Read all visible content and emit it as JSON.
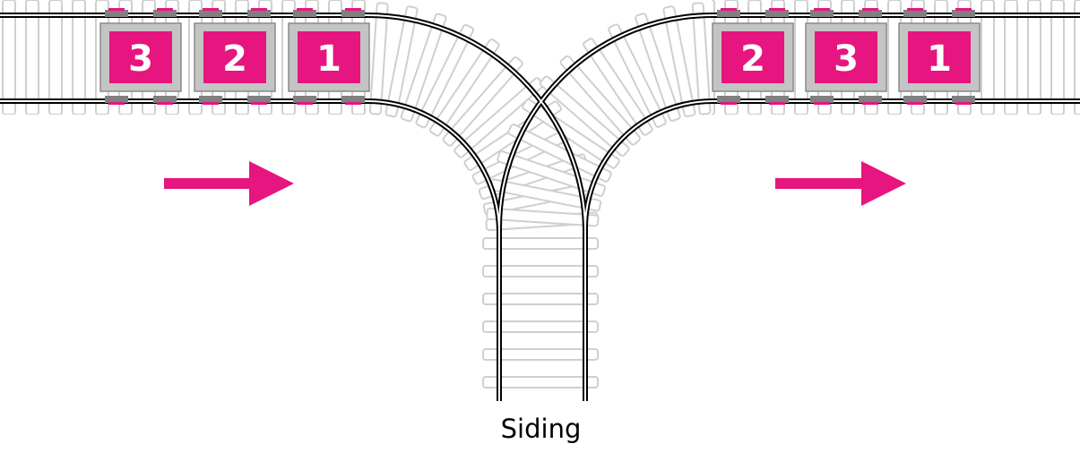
{
  "siding_label": "Siding",
  "left_train": {
    "cars": [
      "3",
      "2",
      "1"
    ]
  },
  "right_train": {
    "cars": [
      "2",
      "3",
      "1"
    ]
  },
  "arrows": [
    {
      "name": "direction-arrow-left",
      "direction": "right"
    },
    {
      "name": "direction-arrow-right",
      "direction": "right"
    }
  ],
  "colors": {
    "car_accent": "#e6157f",
    "car_frame": "#c0c0c0",
    "arrow": "#e6157f",
    "sleeper": "#cfcfcf",
    "rail": "#000000"
  }
}
